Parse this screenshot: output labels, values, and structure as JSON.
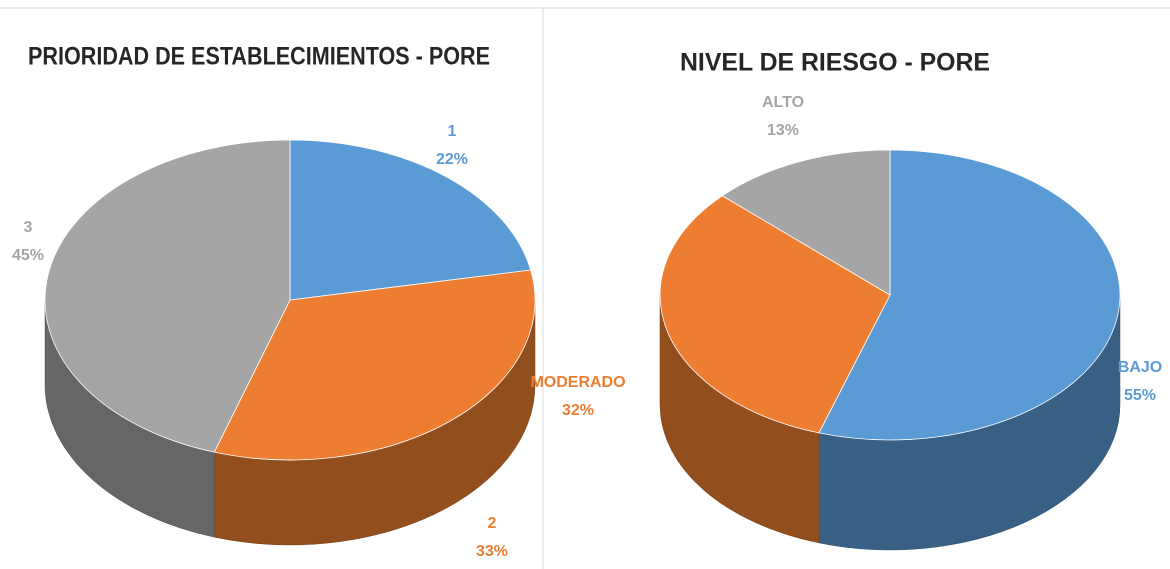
{
  "chart_data": [
    {
      "type": "pie",
      "title": "PRIORIDAD DE ESTABLECIMIENTOS - PORE",
      "categories": [
        "1",
        "2",
        "3"
      ],
      "values": [
        22,
        33,
        45
      ],
      "value_labels": [
        "22%",
        "33%",
        "45%"
      ],
      "colors": [
        "#5b9bd5",
        "#ed7d31",
        "#a5a5a5"
      ]
    },
    {
      "type": "pie",
      "title": "NIVEL DE RIESGO - PORE",
      "categories": [
        "BAJO",
        "MODERADO",
        "ALTO"
      ],
      "values": [
        55,
        32,
        13
      ],
      "value_labels": [
        "55%",
        "32%",
        "13%"
      ],
      "colors": [
        "#5b9bd5",
        "#ed7d31",
        "#a5a5a5"
      ]
    }
  ]
}
